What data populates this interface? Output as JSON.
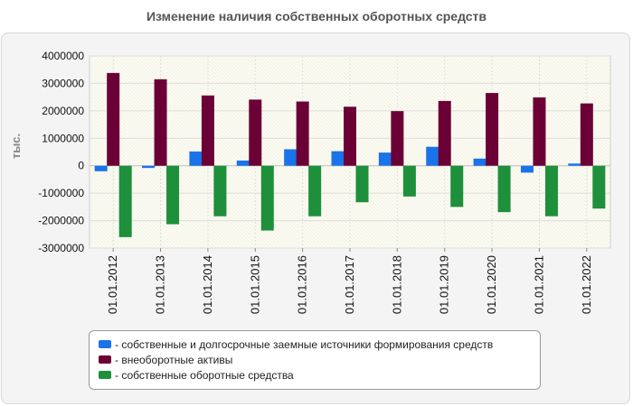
{
  "chart_data": {
    "type": "bar",
    "title": "Изменение наличия собственных оборотных средств",
    "ylabel": "тыс.",
    "ylim": [
      -3000000,
      4000000
    ],
    "yticks": [
      "4000000",
      "3000000",
      "2000000",
      "1000000",
      "0",
      "-1000000",
      "-2000000",
      "-3000000"
    ],
    "ytick_values": [
      4000000,
      3000000,
      2000000,
      1000000,
      0,
      -1000000,
      -2000000,
      -3000000
    ],
    "categories": [
      "01.01.2012",
      "01.01.2013",
      "01.01.2014",
      "01.01.2015",
      "01.01.2016",
      "01.01.2017",
      "01.01.2018",
      "01.01.2019",
      "01.01.2020",
      "01.01.2021",
      "01.01.2022"
    ],
    "series": [
      {
        "name": "- собственные и долгосрочные заемные источники формирования средств",
        "color": "#1a73e8",
        "values": [
          -200000,
          -80000,
          520000,
          190000,
          600000,
          530000,
          480000,
          690000,
          260000,
          -250000,
          80000
        ]
      },
      {
        "name": "- внеоборотные активы",
        "color": "#6b0036",
        "values": [
          3380000,
          3150000,
          2560000,
          2410000,
          2340000,
          2150000,
          1990000,
          2360000,
          2650000,
          2490000,
          2270000
        ]
      },
      {
        "name": "- собственные оборотные средства",
        "color": "#1e8f3a",
        "values": [
          -2600000,
          -2130000,
          -1840000,
          -2360000,
          -1840000,
          -1330000,
          -1120000,
          -1500000,
          -1690000,
          -1840000,
          -1560000
        ]
      }
    ],
    "grid": true,
    "legend_position": "bottom"
  }
}
